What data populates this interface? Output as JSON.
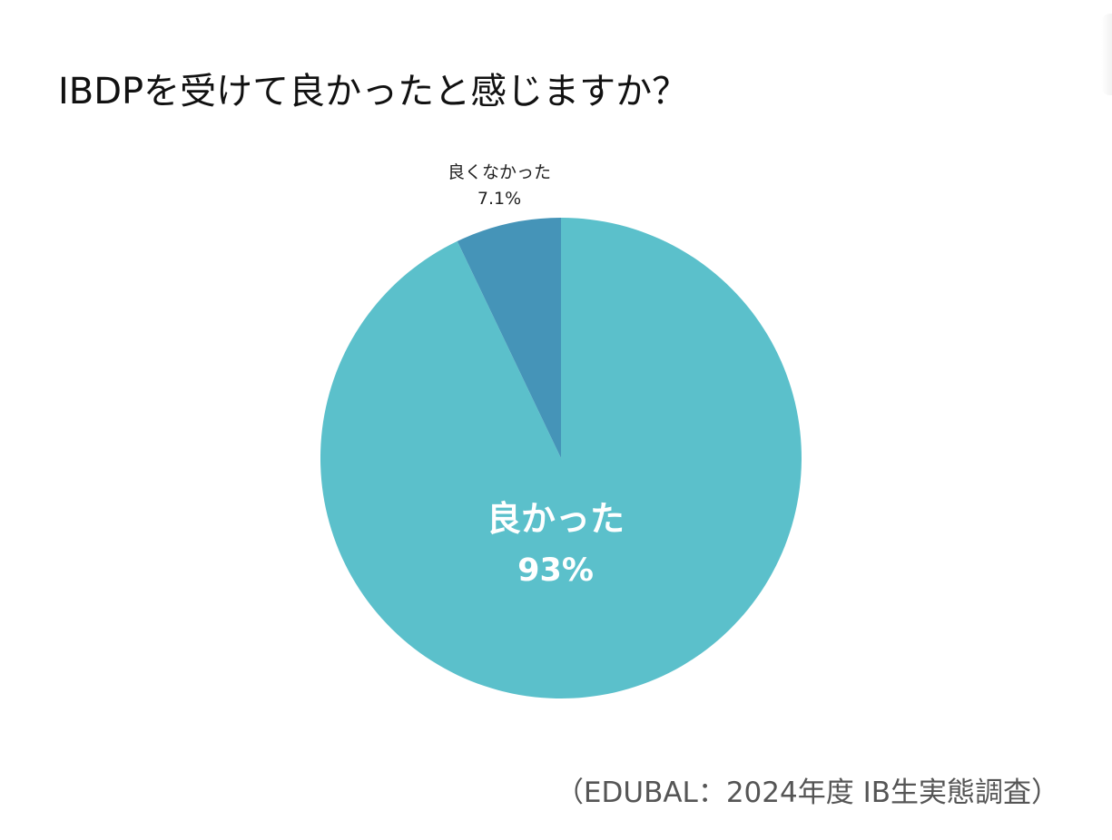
{
  "title": "IBDPを受けて良かったと感じますか？",
  "source": "（EDUBAL：2024年度 IB生実態調査）",
  "chart_data": {
    "type": "pie",
    "title": "IBDPを受けて良かったと感じますか？",
    "slices": [
      {
        "label": "良かった",
        "value": 93,
        "value_label": "93%",
        "color": "#5BC0CB",
        "label_color": "#ffffff",
        "label_position": "inside"
      },
      {
        "label": "良くなかった",
        "value": 7.1,
        "value_label": "7.1%",
        "color": "#4594B8",
        "label_color": "#222222",
        "label_position": "outside-top"
      }
    ],
    "start_angle": "12 o'clock",
    "direction": "counterclockwise from the small slice"
  }
}
